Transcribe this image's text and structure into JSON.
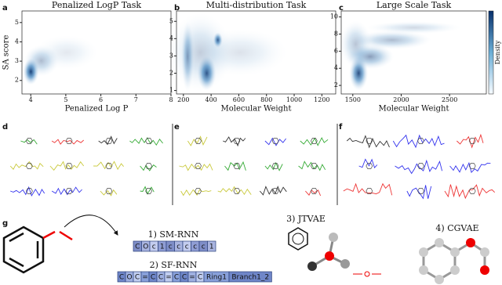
{
  "panel_labels": [
    "a",
    "b",
    "c",
    "d",
    "e",
    "f",
    "g"
  ],
  "chart_data": [
    {
      "type": "density",
      "title": "Penalized LogP Task",
      "x_label": "Penalized Log P",
      "y_label": "SA score",
      "xlim": [
        3.75,
        8
      ],
      "xticks": [
        4,
        5,
        6,
        7,
        8
      ],
      "ylim": [
        1.3,
        5.6
      ],
      "yticks": [
        2,
        3,
        4,
        5
      ]
    },
    {
      "type": "density",
      "title": "Multi-distribution Task",
      "x_label": "Molecular Weight",
      "xlim": [
        150,
        1300
      ],
      "xticks": [
        200,
        400,
        600,
        800,
        1000,
        1200
      ],
      "ylim": [
        0.8,
        5.6
      ],
      "yticks": [
        1,
        2,
        3,
        4,
        5
      ]
    },
    {
      "type": "density",
      "title": "Large Scale Task",
      "x_label": "Molecular Weight",
      "xlim": [
        1380,
        2880
      ],
      "xticks": [
        1500,
        2000,
        2500
      ],
      "ylim": [
        1,
        10.7
      ],
      "yticks": [
        2,
        4,
        6,
        8,
        10
      ],
      "colorbar_label": "Density"
    }
  ],
  "representations": {
    "sm_rnn": {
      "title": "1) SM-RNN",
      "tokens": [
        "C",
        "O",
        "c",
        "1",
        "c",
        "c",
        "c",
        "c",
        "c",
        "1"
      ]
    },
    "sf_rnn": {
      "title": "2) SF-RNN",
      "tokens": [
        "C",
        "O",
        "C",
        "=",
        "C",
        "C",
        "=",
        "C",
        "C",
        "=",
        "C",
        "Ring1",
        "Branch1_2"
      ]
    },
    "jtvae": {
      "title": "3) JTVAE"
    },
    "cgvae": {
      "title": "4) CGVAE"
    }
  }
}
